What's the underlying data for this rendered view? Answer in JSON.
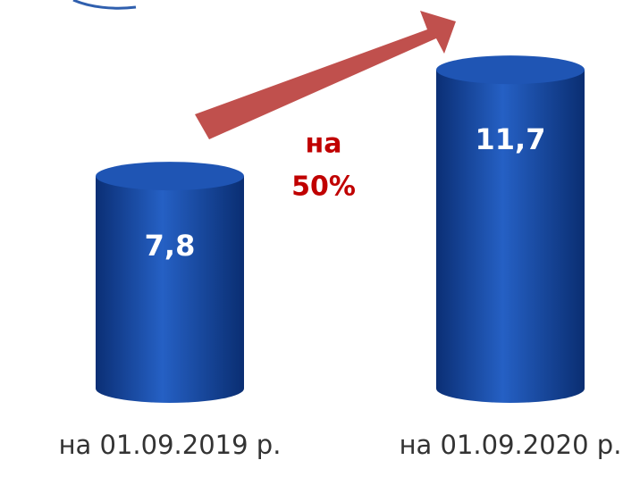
{
  "chart_data": {
    "type": "cylinder",
    "categories": [
      "на 01.09.2019 р.",
      "на 01.09.2020 р."
    ],
    "values": [
      7.8,
      11.7
    ],
    "value_labels": [
      "7,8",
      "11,7"
    ],
    "annotation": [
      "на",
      "50%"
    ],
    "color": "#1b4fa8"
  }
}
